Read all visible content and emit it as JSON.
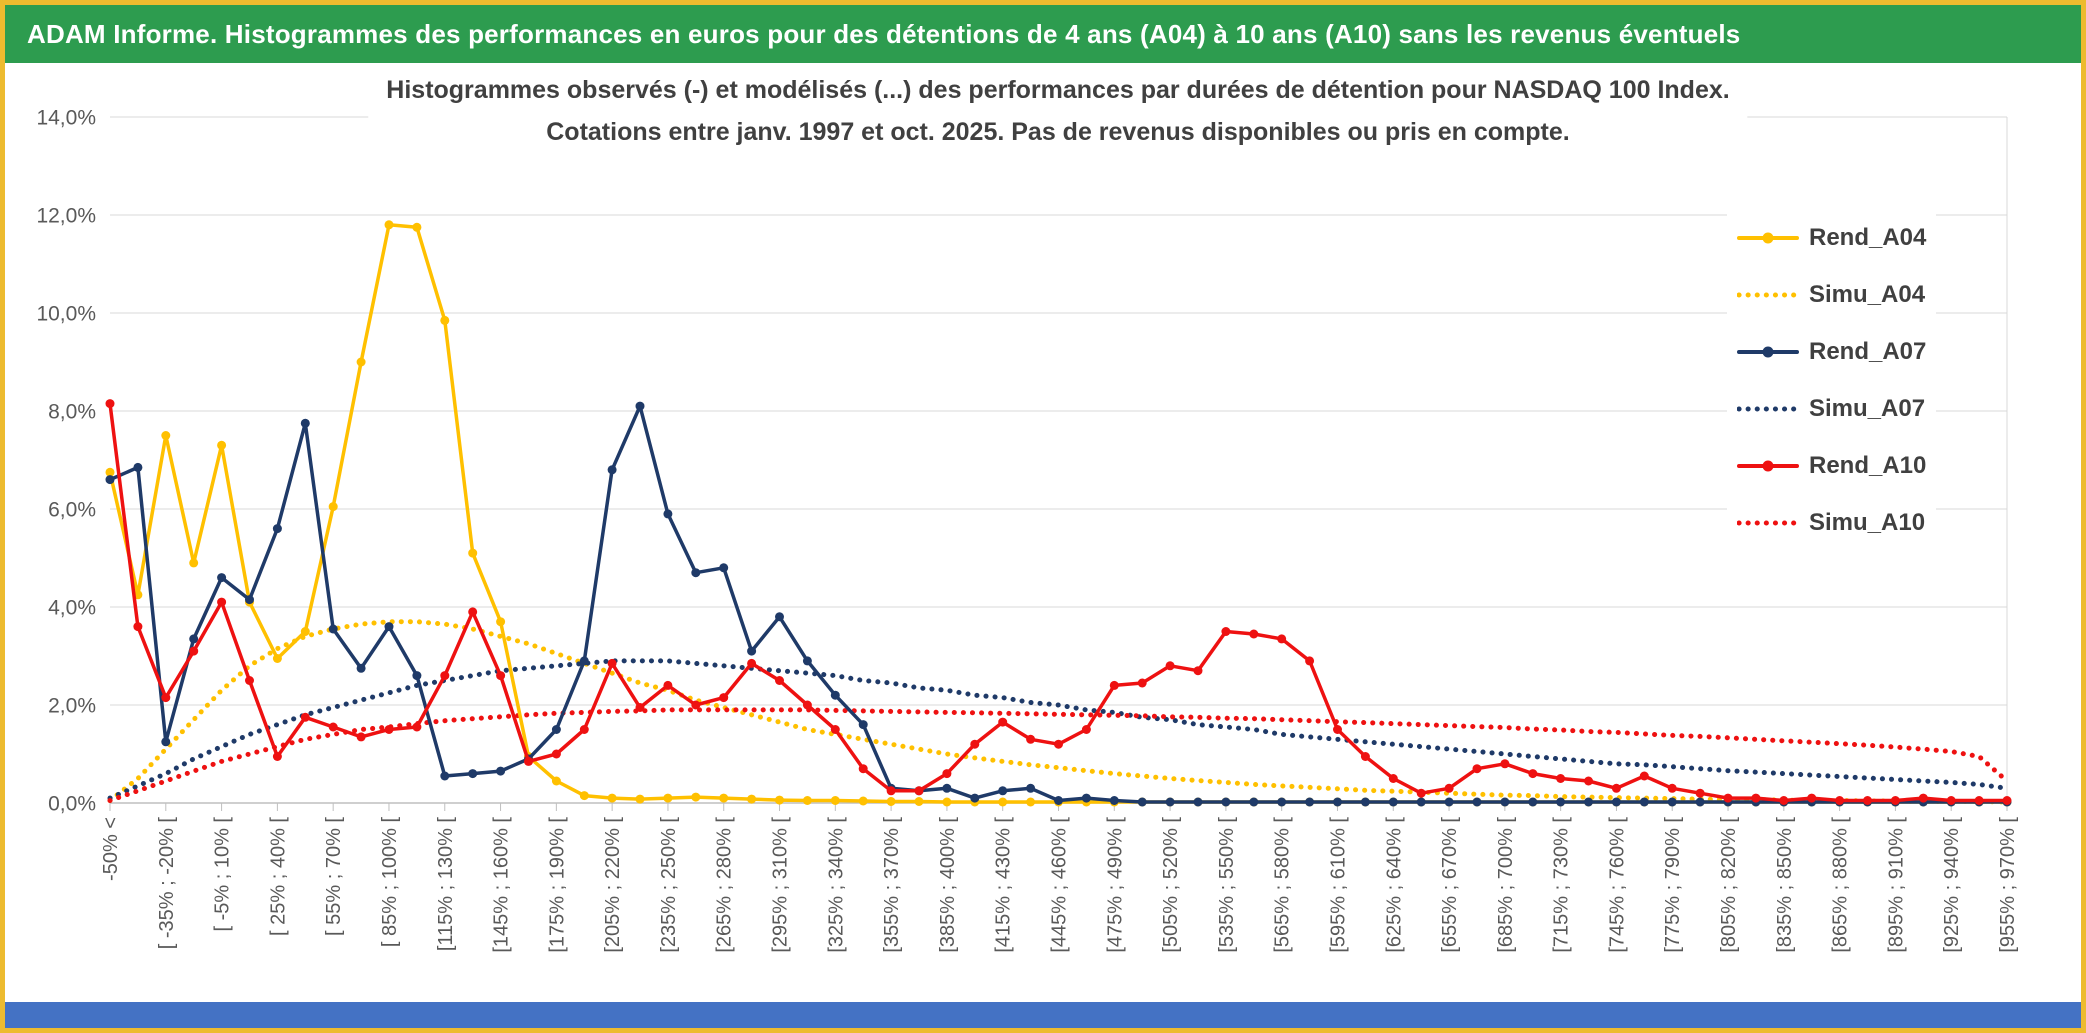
{
  "window": {
    "title": "ADAM Informe. Histogrammes des performances en euros pour des détentions de 4 ans (A04) à 10 ans (A10) sans les revenus éventuels"
  },
  "colors": {
    "titlebar_green": "#2D9C4F",
    "frame_gold": "#EDBB2F",
    "footer_blue": "#4472C4",
    "gridline": "#D9D9D9",
    "axis_line": "#BFBFBF",
    "label_text": "#595959",
    "title_text": "#404040"
  },
  "chart_data": {
    "type": "line",
    "title_line1": "Histogrammes observés (-) et modélisés (...) des performances par durées de détention pour NASDAQ 100 Index.",
    "title_line2": "Cotations entre janv. 1997 et oct. 2025. Pas de revenus disponibles ou pris en compte.",
    "grid": "horizontal",
    "legend_position": "right-overlay",
    "y_axis": {
      "min": 0,
      "max": 14,
      "step": 2,
      "tick_labels": [
        "0,0%",
        "2,0%",
        "4,0%",
        "6,0%",
        "8,0%",
        "10,0%",
        "12,0%",
        "14,0%"
      ]
    },
    "x_axis": {
      "n_points": 69,
      "label_every": 2,
      "tick_labels": [
        "-50% <",
        "[ -35% ; -20% [",
        "[ -5% ; 10% [",
        "[ 25% ; 40% [",
        "[ 55% ; 70% [",
        "[ 85% ; 100% [",
        "[115% ; 130% [",
        "[145% ; 160% [",
        "[175% ; 190% [",
        "[205% ; 220% [",
        "[235% ; 250% [",
        "[265% ; 280% [",
        "[295% ; 310% [",
        "[325% ; 340% [",
        "[355% ; 370% [",
        "[385% ; 400% [",
        "[415% ; 430% [",
        "[445% ; 460% [",
        "[475% ; 490% [",
        "[505% ; 520% [",
        "[535% ; 550% [",
        "[565% ; 580% [",
        "[595% ; 610% [",
        "[625% ; 640% [",
        "[655% ; 670% [",
        "[685% ; 700% [",
        "[715% ; 730% [",
        "[745% ; 760% [",
        "[775% ; 790% [",
        "[805% ; 820% [",
        "[835% ; 850% [",
        "[865% ; 880% [",
        "[895% ; 910% [",
        "[925% ; 940% [",
        "[955% ; 970% ["
      ]
    },
    "series": [
      {
        "name": "Rend_A04",
        "color": "#FFC000",
        "style": "solid",
        "marker": true,
        "values": [
          6.75,
          4.25,
          7.5,
          4.9,
          7.3,
          4.1,
          2.95,
          3.5,
          6.05,
          9.0,
          11.8,
          11.75,
          9.85,
          5.1,
          3.7,
          0.95,
          0.45,
          0.15,
          0.1,
          0.08,
          0.1,
          0.12,
          0.1,
          0.08,
          0.06,
          0.05,
          0.05,
          0.04,
          0.03,
          0.03,
          0.02,
          0.02,
          0.02,
          0.02,
          0.02,
          0.02,
          0.02,
          0.02,
          0.02,
          0.02,
          0.02,
          0.02,
          0.02,
          0.02,
          0.02,
          0.02,
          0.02,
          0.02,
          0.02,
          0.02,
          0.02,
          0.02,
          0.02,
          0.02,
          0.02,
          0.02,
          0.02,
          0.02,
          0.02,
          0.02,
          0.02,
          0.02,
          0.02,
          0.02,
          0.02,
          0.02,
          0.02,
          0.02,
          0.02
        ]
      },
      {
        "name": "Simu_A04",
        "color": "#FFC000",
        "style": "dotted",
        "marker": false,
        "values": [
          0.05,
          0.5,
          1.1,
          1.7,
          2.3,
          2.8,
          3.15,
          3.4,
          3.55,
          3.65,
          3.7,
          3.7,
          3.65,
          3.55,
          3.4,
          3.25,
          3.05,
          2.85,
          2.65,
          2.45,
          2.3,
          2.1,
          1.95,
          1.8,
          1.65,
          1.5,
          1.4,
          1.3,
          1.2,
          1.1,
          1.0,
          0.92,
          0.85,
          0.78,
          0.72,
          0.66,
          0.6,
          0.55,
          0.5,
          0.46,
          0.42,
          0.38,
          0.35,
          0.32,
          0.29,
          0.26,
          0.24,
          0.22,
          0.2,
          0.18,
          0.16,
          0.15,
          0.13,
          0.12,
          0.11,
          0.1,
          0.09,
          0.08,
          0.07,
          0.07,
          0.06,
          0.05,
          0.05,
          0.04,
          0.04,
          0.03,
          0.03,
          0.03,
          0.02
        ]
      },
      {
        "name": "Rend_A07",
        "color": "#1F3A68",
        "style": "solid",
        "marker": true,
        "values": [
          6.6,
          6.85,
          1.25,
          3.35,
          4.6,
          4.15,
          5.6,
          7.75,
          3.55,
          2.75,
          3.6,
          2.6,
          0.55,
          0.6,
          0.65,
          0.9,
          1.5,
          2.9,
          6.8,
          8.1,
          5.9,
          4.7,
          4.8,
          3.1,
          3.8,
          2.9,
          2.2,
          1.6,
          0.3,
          0.25,
          0.3,
          0.1,
          0.25,
          0.3,
          0.05,
          0.1,
          0.05,
          0.02,
          0.02,
          0.02,
          0.02,
          0.02,
          0.02,
          0.02,
          0.02,
          0.02,
          0.02,
          0.02,
          0.02,
          0.02,
          0.02,
          0.02,
          0.02,
          0.02,
          0.02,
          0.02,
          0.02,
          0.02,
          0.02,
          0.02,
          0.02,
          0.02,
          0.02,
          0.02,
          0.02,
          0.02,
          0.02,
          0.02,
          0.02
        ]
      },
      {
        "name": "Simu_A07",
        "color": "#1F3A68",
        "style": "dotted",
        "marker": false,
        "values": [
          0.1,
          0.35,
          0.6,
          0.9,
          1.15,
          1.4,
          1.6,
          1.8,
          1.95,
          2.1,
          2.25,
          2.4,
          2.5,
          2.6,
          2.7,
          2.75,
          2.8,
          2.85,
          2.9,
          2.9,
          2.9,
          2.85,
          2.8,
          2.75,
          2.7,
          2.65,
          2.6,
          2.5,
          2.45,
          2.35,
          2.3,
          2.2,
          2.15,
          2.05,
          2.0,
          1.9,
          1.85,
          1.75,
          1.7,
          1.6,
          1.55,
          1.5,
          1.4,
          1.35,
          1.3,
          1.25,
          1.2,
          1.15,
          1.1,
          1.05,
          1.0,
          0.95,
          0.9,
          0.85,
          0.8,
          0.78,
          0.74,
          0.7,
          0.66,
          0.63,
          0.6,
          0.57,
          0.54,
          0.51,
          0.48,
          0.45,
          0.42,
          0.38,
          0.3
        ]
      },
      {
        "name": "Rend_A10",
        "color": "#EE1111",
        "style": "solid",
        "marker": true,
        "values": [
          8.15,
          3.6,
          2.15,
          3.1,
          4.1,
          2.5,
          0.95,
          1.75,
          1.55,
          1.35,
          1.5,
          1.55,
          2.6,
          3.9,
          2.6,
          0.85,
          1.0,
          1.5,
          2.85,
          1.95,
          2.4,
          2.0,
          2.15,
          2.85,
          2.5,
          2.0,
          1.5,
          0.7,
          0.25,
          0.25,
          0.6,
          1.2,
          1.65,
          1.3,
          1.2,
          1.5,
          2.4,
          2.45,
          2.8,
          2.7,
          3.5,
          3.45,
          3.35,
          2.9,
          1.5,
          0.95,
          0.5,
          0.2,
          0.3,
          0.7,
          0.8,
          0.6,
          0.5,
          0.45,
          0.3,
          0.55,
          0.3,
          0.2,
          0.1,
          0.1,
          0.05,
          0.1,
          0.05,
          0.05,
          0.05,
          0.1,
          0.05,
          0.05,
          0.05
        ]
      },
      {
        "name": "Simu_A10",
        "color": "#EE1111",
        "style": "dotted",
        "marker": false,
        "values": [
          0.05,
          0.25,
          0.45,
          0.65,
          0.85,
          1.0,
          1.15,
          1.3,
          1.4,
          1.5,
          1.55,
          1.62,
          1.68,
          1.72,
          1.76,
          1.8,
          1.83,
          1.85,
          1.87,
          1.88,
          1.9,
          1.9,
          1.9,
          1.9,
          1.9,
          1.9,
          1.89,
          1.88,
          1.87,
          1.86,
          1.85,
          1.84,
          1.83,
          1.82,
          1.81,
          1.8,
          1.79,
          1.78,
          1.76,
          1.75,
          1.73,
          1.72,
          1.7,
          1.68,
          1.66,
          1.64,
          1.62,
          1.6,
          1.58,
          1.56,
          1.54,
          1.51,
          1.49,
          1.46,
          1.44,
          1.41,
          1.38,
          1.36,
          1.33,
          1.3,
          1.27,
          1.24,
          1.21,
          1.18,
          1.14,
          1.1,
          1.05,
          0.95,
          0.45
        ]
      }
    ]
  }
}
